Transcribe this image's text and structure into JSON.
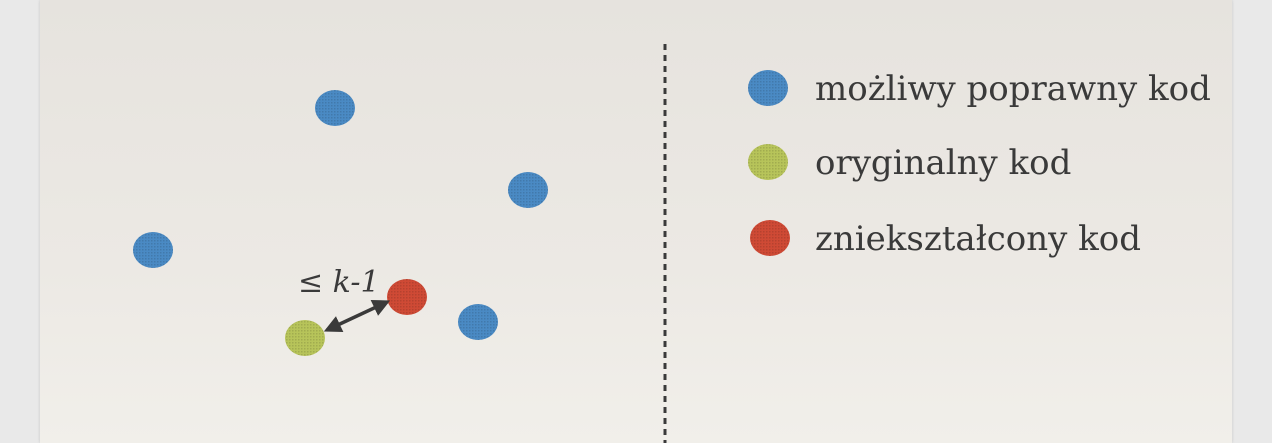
{
  "colors": {
    "possible": "#4a8ac4",
    "original": "#b7c45a",
    "corrupted": "#cf4a35",
    "divider": "#3a3a3a",
    "arrow": "#3a3a3a"
  },
  "legend": [
    {
      "key": "possible",
      "label": "możliwy poprawny kod",
      "icon": "blue-dot-icon"
    },
    {
      "key": "original",
      "label": "oryginalny kod",
      "icon": "green-dot-icon"
    },
    {
      "key": "corrupted",
      "label": "zniekształcony kod",
      "icon": "red-dot-icon"
    }
  ],
  "distance_label": "≤ k-1"
}
